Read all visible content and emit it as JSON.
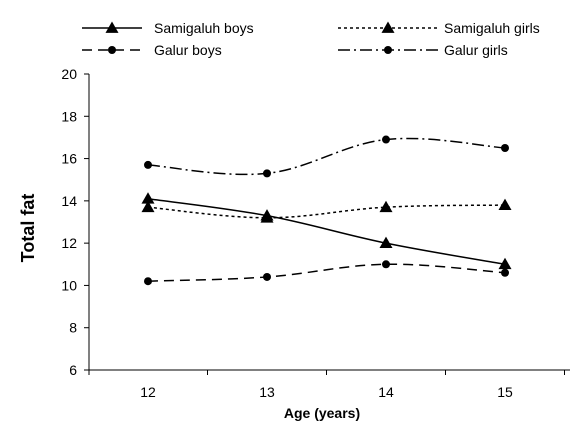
{
  "chart_data": {
    "type": "line",
    "xlabel": "Age (years)",
    "ylabel": "Total fat",
    "x": [
      12,
      13,
      14,
      15
    ],
    "ylim": [
      6,
      20
    ],
    "yticks": [
      6,
      8,
      10,
      12,
      14,
      16,
      18,
      20
    ],
    "xticks": [
      12,
      13,
      14,
      15
    ],
    "grid": false,
    "legend_position": "top",
    "series": [
      {
        "name": "Samigaluh boys",
        "values": [
          14.1,
          13.3,
          12.0,
          11.0
        ],
        "dash": "solid",
        "marker": "triangle"
      },
      {
        "name": "Samigaluh girls",
        "values": [
          13.7,
          13.2,
          13.7,
          13.8
        ],
        "dash": "dotted",
        "marker": "triangle"
      },
      {
        "name": "Galur boys",
        "values": [
          10.2,
          10.4,
          11.0,
          10.6
        ],
        "dash": "dashed",
        "marker": "circle"
      },
      {
        "name": "Galur girls",
        "values": [
          15.7,
          15.3,
          16.9,
          16.5
        ],
        "dash": "dashdot",
        "marker": "circle"
      }
    ]
  }
}
